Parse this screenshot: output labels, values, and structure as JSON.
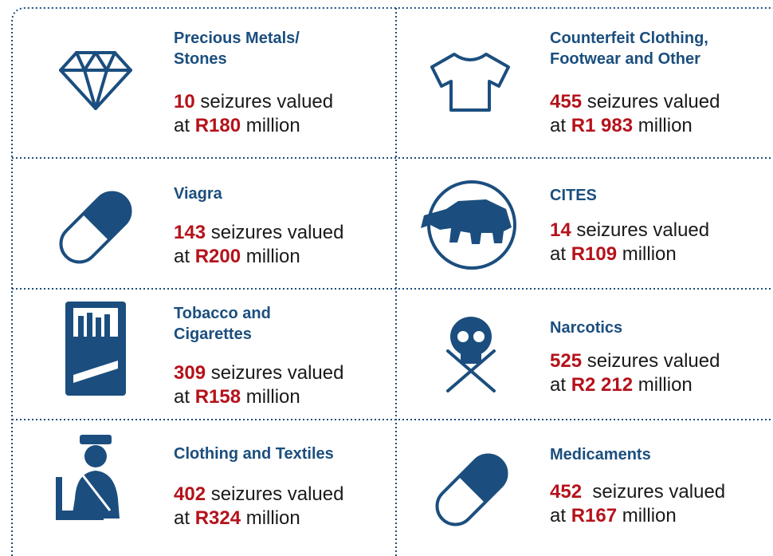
{
  "items": [
    {
      "title": "Precious Metals/\nStones",
      "count": "10",
      "count_text": " seizures valued",
      "prefix": "at ",
      "value": "R180",
      "unit": " million"
    },
    {
      "title": "Counterfeit Clothing,\nFootwear and Other",
      "count": "455",
      "count_text": " seizures valued",
      "prefix": "at ",
      "value": "R1 983",
      "unit": " million"
    },
    {
      "title": "Viagra",
      "count": "143",
      "count_text": " seizures valued",
      "prefix": "at ",
      "value": "R200",
      "unit": " million"
    },
    {
      "title": "CITES",
      "count": "14",
      "count_text": " seizures valued",
      "prefix": "at ",
      "value": "R109",
      "unit": " million"
    },
    {
      "title": "Tobacco and\nCigarettes",
      "count": "309",
      "count_text": " seizures valued",
      "prefix": "at ",
      "value": "R158",
      "unit": " million"
    },
    {
      "title": "Narcotics",
      "count": "525",
      "count_text": " seizures valued",
      "prefix": "at ",
      "value": "R2 212",
      "unit": " million"
    },
    {
      "title": "Clothing and Textiles",
      "count": "402",
      "count_text": " seizures valued",
      "prefix": "at ",
      "value": "R324",
      "unit": " million"
    },
    {
      "title": "Medicaments",
      "count": "452",
      "count_text": "  seizures valued",
      "prefix": "at ",
      "value": "R167",
      "unit": " million"
    }
  ]
}
